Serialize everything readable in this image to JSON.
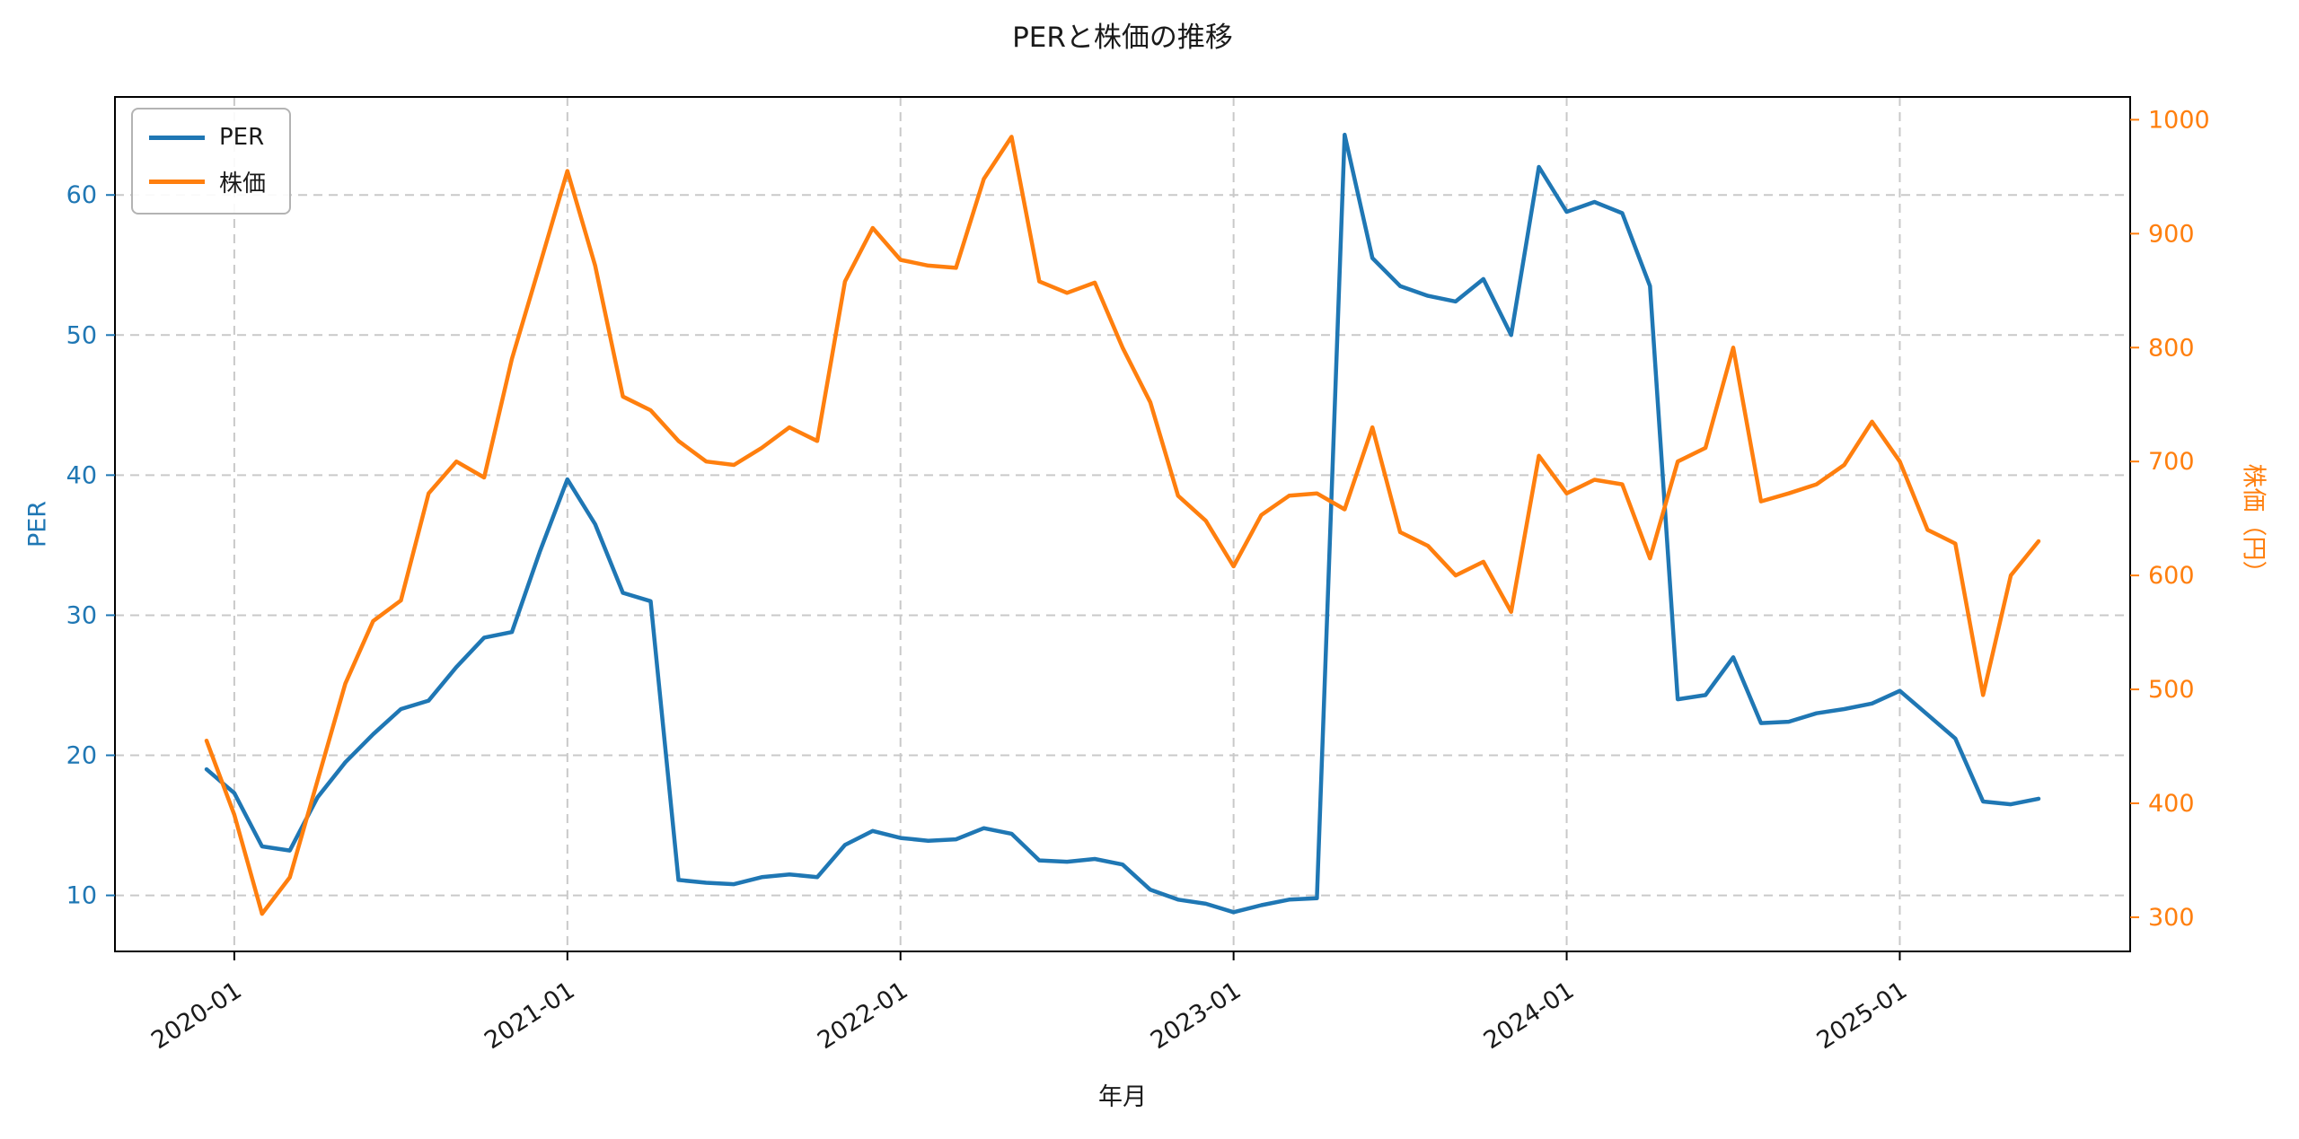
{
  "chart_data": {
    "type": "line",
    "title": "PERと株価の推移",
    "xlabel": "年月",
    "background": "#ffffff",
    "grid_color": "#c9c9c9",
    "grid_style": "dashed",
    "legend_position": "upper-left",
    "x": [
      "2019-12",
      "2020-01",
      "2020-02",
      "2020-03",
      "2020-04",
      "2020-05",
      "2020-06",
      "2020-07",
      "2020-08",
      "2020-09",
      "2020-10",
      "2020-11",
      "2020-12",
      "2021-01",
      "2021-02",
      "2021-03",
      "2021-04",
      "2021-05",
      "2021-06",
      "2021-07",
      "2021-08",
      "2021-09",
      "2021-10",
      "2021-11",
      "2021-12",
      "2022-01",
      "2022-02",
      "2022-03",
      "2022-04",
      "2022-05",
      "2022-06",
      "2022-07",
      "2022-08",
      "2022-09",
      "2022-10",
      "2022-11",
      "2022-12",
      "2023-01",
      "2023-02",
      "2023-03",
      "2023-04",
      "2023-05",
      "2023-06",
      "2023-07",
      "2023-08",
      "2023-09",
      "2023-10",
      "2023-11",
      "2023-12",
      "2024-01",
      "2024-02",
      "2024-03",
      "2024-04",
      "2024-05",
      "2024-06",
      "2024-07",
      "2024-08",
      "2024-09",
      "2024-10",
      "2024-11",
      "2024-12",
      "2025-01",
      "2025-02",
      "2025-03",
      "2025-04",
      "2025-05",
      "2025-06"
    ],
    "x_ticks": [
      "2020-01",
      "2021-01",
      "2022-01",
      "2023-01",
      "2024-01",
      "2025-01"
    ],
    "y_left": {
      "label": "PER",
      "color": "#1f77b4",
      "min": 6,
      "max": 67,
      "ticks": [
        10,
        20,
        30,
        40,
        50,
        60
      ]
    },
    "y_right": {
      "label": "株価（円）",
      "color": "#ff7f0e",
      "min": 270,
      "max": 1020,
      "ticks": [
        300,
        400,
        500,
        600,
        700,
        800,
        900,
        1000
      ]
    },
    "series": [
      {
        "id": "per-line",
        "name": "PER",
        "axis": "left",
        "color": "#1f77b4",
        "values": [
          19.0,
          17.3,
          13.5,
          13.2,
          17.0,
          19.5,
          21.5,
          23.3,
          23.9,
          26.3,
          28.4,
          28.8,
          34.5,
          39.7,
          36.5,
          31.6,
          31.0,
          11.1,
          10.9,
          10.8,
          11.3,
          11.5,
          11.3,
          13.6,
          14.6,
          14.1,
          13.9,
          14.0,
          14.8,
          14.4,
          12.5,
          12.4,
          12.6,
          12.2,
          10.4,
          9.7,
          9.4,
          8.8,
          9.3,
          9.7,
          9.8,
          64.3,
          55.5,
          53.5,
          52.8,
          52.4,
          54.0,
          50.0,
          62.0,
          58.8,
          59.5,
          58.7,
          53.5,
          24.0,
          24.3,
          27.0,
          22.3,
          22.4,
          23.0,
          23.3,
          23.7,
          24.6,
          22.9,
          21.2,
          16.7,
          16.5,
          16.9
        ]
      },
      {
        "id": "stock-price-line",
        "name": "株価",
        "axis": "right",
        "color": "#ff7f0e",
        "values": [
          455,
          390,
          303,
          335,
          420,
          505,
          560,
          578,
          672,
          700,
          686,
          790,
          872,
          955,
          872,
          757,
          745,
          718,
          700,
          697,
          712,
          730,
          718,
          858,
          905,
          877,
          872,
          870,
          948,
          985,
          858,
          848,
          857,
          800,
          752,
          670,
          648,
          608,
          653,
          670,
          672,
          658,
          730,
          638,
          626,
          600,
          612,
          568,
          705,
          672,
          684,
          680,
          615,
          700,
          712,
          800,
          665,
          672,
          680,
          697,
          735,
          700,
          640,
          628,
          495,
          600,
          630
        ]
      }
    ]
  }
}
